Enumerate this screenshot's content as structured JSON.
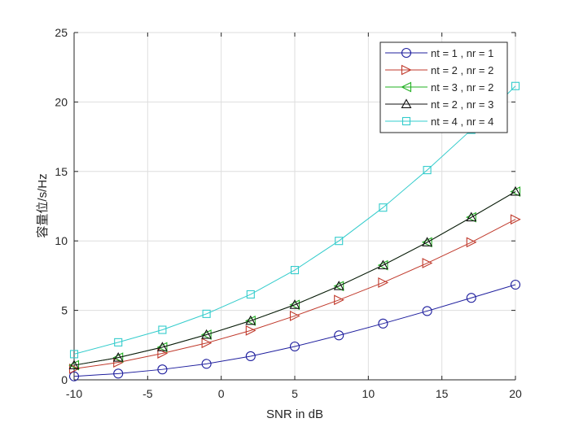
{
  "chart_data": {
    "type": "line",
    "title": "",
    "xlabel": "SNR in dB",
    "ylabel": "容量位/s/Hz",
    "xlim": [
      -10,
      20
    ],
    "ylim": [
      0,
      25
    ],
    "xticks": [
      -10,
      -5,
      0,
      5,
      10,
      15,
      20
    ],
    "yticks": [
      0,
      5,
      10,
      15,
      20,
      25
    ],
    "x_tick_labels": [
      "-10",
      "-5",
      "0",
      "5",
      "10",
      "15",
      "20"
    ],
    "y_tick_labels": [
      "0",
      "5",
      "10",
      "15",
      "20",
      "25"
    ],
    "grid": true,
    "legend_position": "top-right",
    "x": [
      -10,
      -7,
      -4,
      -1,
      2,
      5,
      8,
      11,
      14,
      17,
      20
    ],
    "series": [
      {
        "name": "nt = 1 , nr = 1",
        "color": "#1f1f9e",
        "marker": "circle",
        "values": [
          0.25,
          0.45,
          0.75,
          1.15,
          1.7,
          2.4,
          3.2,
          4.05,
          4.95,
          5.9,
          6.85
        ]
      },
      {
        "name": "nt = 2 , nr = 2",
        "color": "#c0392b",
        "marker": "triangle-right",
        "values": [
          0.8,
          1.25,
          1.9,
          2.65,
          3.55,
          4.6,
          5.75,
          7.0,
          8.4,
          9.9,
          11.55
        ]
      },
      {
        "name": "nt = 3 , nr = 2",
        "color": "#22b022",
        "marker": "triangle-left",
        "values": [
          1.05,
          1.6,
          2.35,
          3.25,
          4.25,
          5.4,
          6.75,
          8.25,
          9.9,
          11.7,
          13.55
        ]
      },
      {
        "name": "nt = 2 , nr = 3",
        "color": "#111111",
        "marker": "triangle-up",
        "values": [
          1.05,
          1.6,
          2.35,
          3.25,
          4.25,
          5.4,
          6.75,
          8.25,
          9.9,
          11.7,
          13.55
        ]
      },
      {
        "name": "nt = 4 , nr = 4",
        "color": "#33cccc",
        "marker": "square",
        "values": [
          1.85,
          2.7,
          3.6,
          4.75,
          6.15,
          7.9,
          10.0,
          12.4,
          15.1,
          18.0,
          21.15
        ]
      }
    ]
  }
}
